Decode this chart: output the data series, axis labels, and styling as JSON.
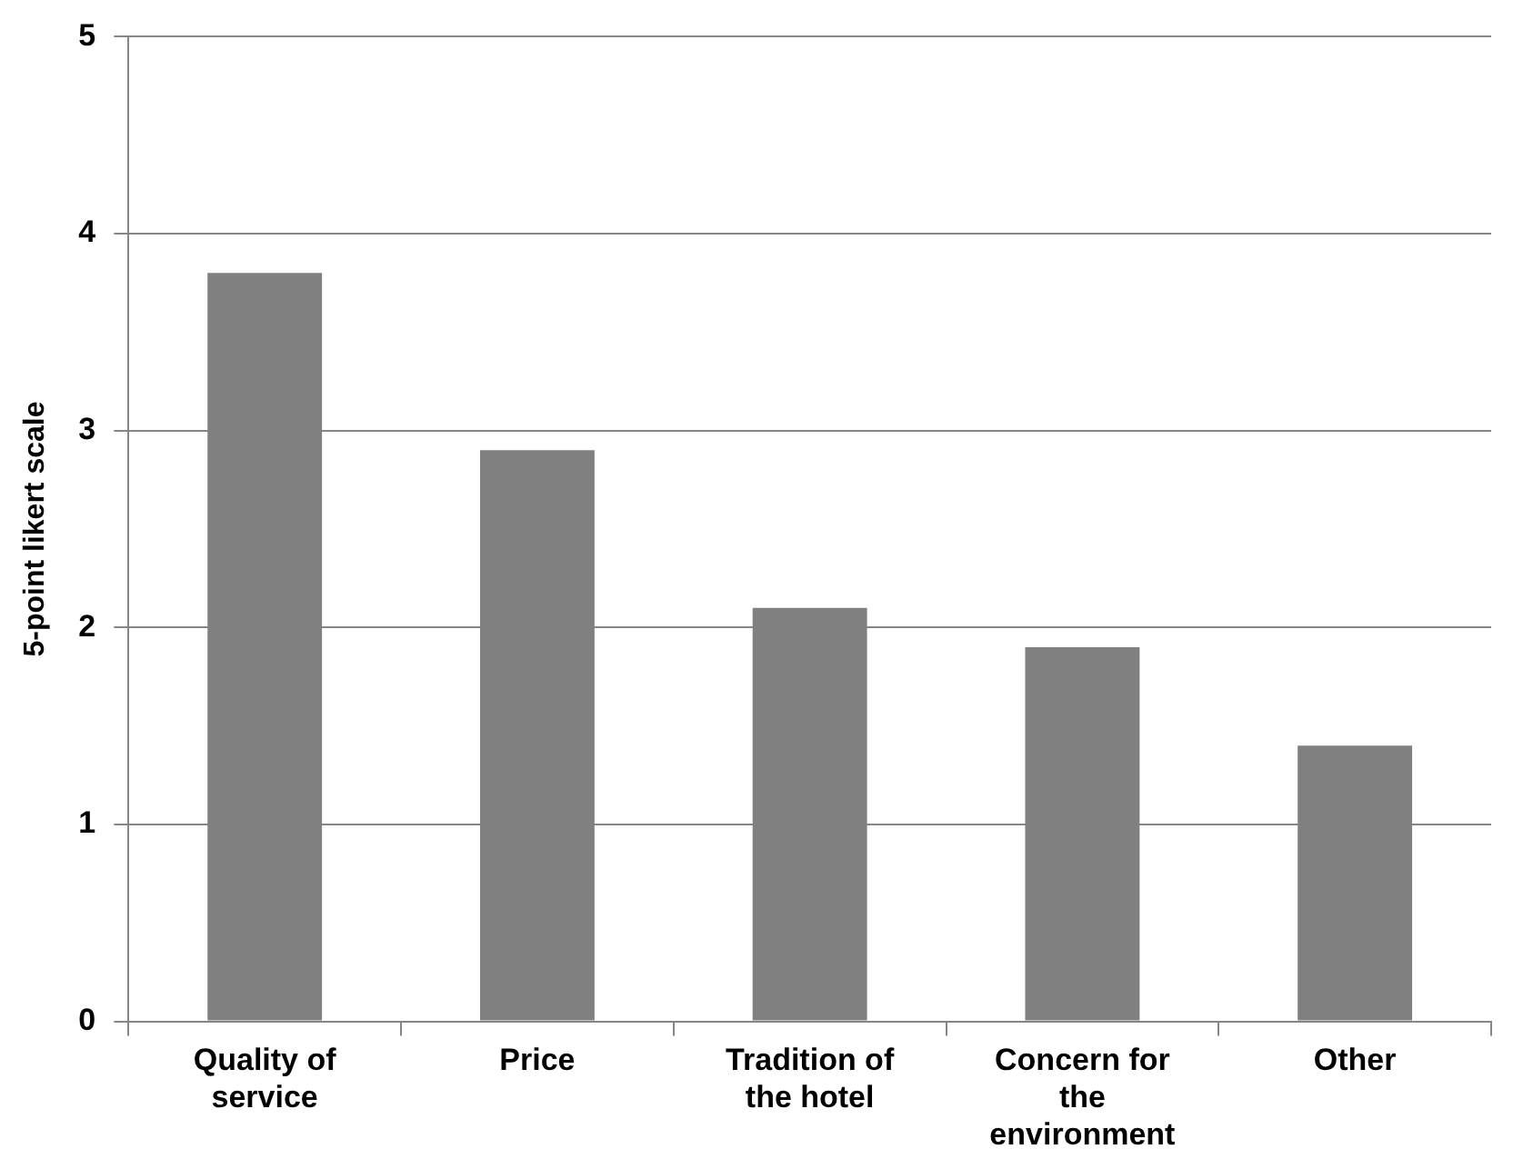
{
  "chart_data": {
    "type": "bar",
    "ylabel": "5-point likert scale",
    "categories": [
      "Quality of service",
      "Price",
      "Tradition of the hotel",
      "Concern for the environment",
      "Other"
    ],
    "values": [
      3.8,
      2.9,
      2.1,
      1.9,
      1.4
    ],
    "color": "#808080",
    "ylim": [
      0,
      5
    ],
    "yticks": [
      0,
      1,
      2,
      3,
      4,
      5
    ],
    "grid": "y",
    "legend": false
  }
}
